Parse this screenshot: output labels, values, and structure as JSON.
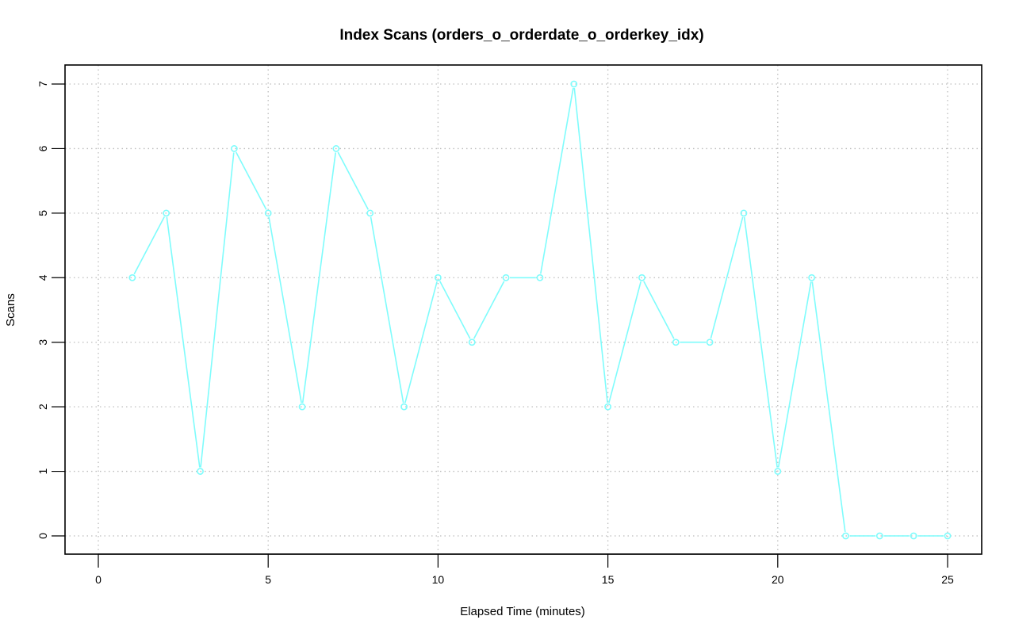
{
  "chart_data": {
    "type": "line",
    "title": "Index Scans (orders_o_orderdate_o_orderkey_idx)",
    "xlabel": "Elapsed Time (minutes)",
    "ylabel": "Scans",
    "xlim": [
      0,
      25
    ],
    "ylim": [
      0,
      7
    ],
    "xticks": [
      0,
      5,
      10,
      15,
      20,
      25
    ],
    "yticks": [
      0,
      1,
      2,
      3,
      4,
      5,
      6,
      7
    ],
    "grid": true,
    "series": [
      {
        "color": "#7ffcfc",
        "x": [
          1,
          2,
          3,
          4,
          5,
          6,
          7,
          8,
          9,
          10,
          11,
          12,
          13,
          14,
          15,
          16,
          17,
          18,
          19,
          20,
          21,
          22,
          23,
          24,
          25
        ],
        "y": [
          4,
          5,
          1,
          6,
          5,
          2,
          6,
          5,
          2,
          4,
          3,
          4,
          4,
          7,
          2,
          4,
          3,
          3,
          5,
          1,
          4,
          0,
          0,
          0,
          0
        ]
      }
    ]
  }
}
